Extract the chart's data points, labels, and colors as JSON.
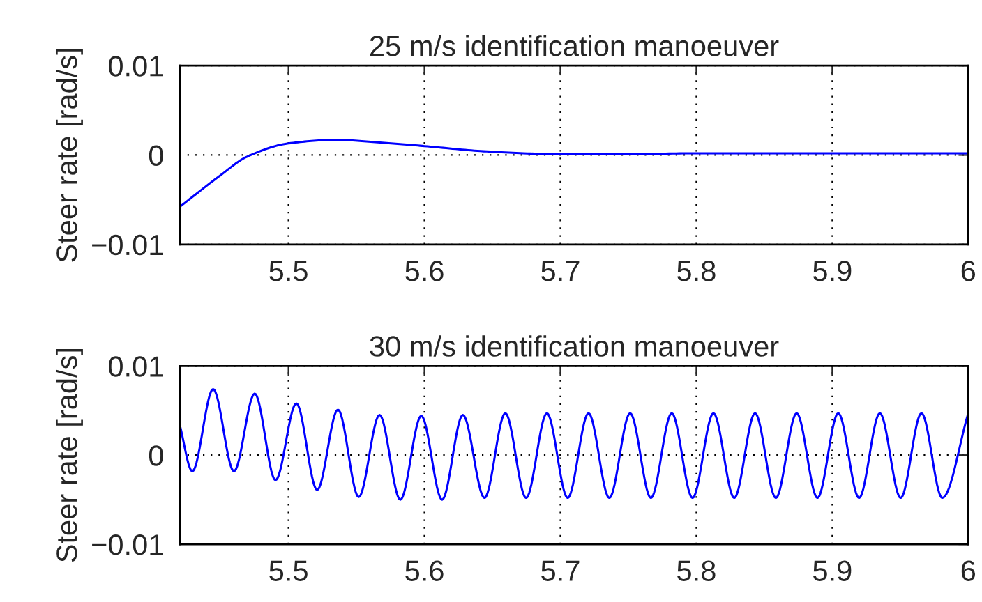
{
  "chart_data": [
    {
      "type": "line",
      "title": "25 m/s identification manoeuver",
      "ylabel": "Steer rate [rad/s]",
      "series": [
        {
          "color": "#0000ff",
          "x": [
            5.42,
            5.4497,
            5.4693,
            5.5,
            5.534,
            5.5673,
            5.6,
            5.6459,
            5.7,
            5.75,
            5.8,
            5.9,
            6.0
          ],
          "values": [
            -0.0058,
            -0.0023,
            -0.0002,
            0.0013,
            0.0017,
            0.0014,
            0.001,
            0.0004,
            0.0001,
            0.0001,
            0.0002,
            0.0002,
            0.0002
          ]
        }
      ],
      "xlim": [
        5.42,
        6
      ],
      "xticks": [
        5.5,
        5.6,
        5.7,
        5.8,
        5.9,
        6
      ],
      "ylim": [
        -0.01,
        0.01
      ],
      "yticks": [
        {
          "value": -0.01,
          "label": "−0.01"
        },
        0,
        0.01
      ],
      "grid": true,
      "line_style": "solid"
    },
    {
      "type": "line",
      "title": "30 m/s identification manoeuver",
      "ylabel": "Steer rate [rad/s]",
      "series": [
        {
          "color": "#0000ff",
          "x": [
            5.42,
            5.4293,
            5.4446,
            5.4599,
            5.4752,
            5.4905,
            5.5058,
            5.5211,
            5.5364,
            5.5517,
            5.567,
            5.5823,
            5.5977,
            5.613,
            5.6283,
            5.6442,
            5.6595,
            5.6748,
            5.6901,
            5.7054,
            5.7207,
            5.736,
            5.7513,
            5.7666,
            5.7819,
            5.7972,
            5.8126,
            5.8279,
            5.8432,
            5.8585,
            5.8738,
            5.8891,
            5.9044,
            5.9197,
            5.935,
            5.9503,
            5.9656,
            5.9809,
            6.0
          ],
          "values": [
            0.0034,
            -0.0018,
            0.0074,
            -0.0018,
            0.0069,
            -0.0028,
            0.0058,
            -0.0039,
            0.0051,
            -0.0047,
            0.0045,
            -0.005,
            0.0044,
            -0.005,
            0.0045,
            -0.0048,
            0.0047,
            -0.0048,
            0.0047,
            -0.0048,
            0.0047,
            -0.0048,
            0.0047,
            -0.0048,
            0.0047,
            -0.0048,
            0.0047,
            -0.0048,
            0.0047,
            -0.0048,
            0.0047,
            -0.0048,
            0.0047,
            -0.0048,
            0.0047,
            -0.0048,
            0.0047,
            -0.0048,
            0.0047
          ]
        }
      ],
      "xlim": [
        5.42,
        6
      ],
      "xticks": [
        5.5,
        5.6,
        5.7,
        5.8,
        5.9,
        6
      ],
      "ylim": [
        -0.01,
        0.01
      ],
      "yticks": [
        {
          "value": -0.01,
          "label": "−0.01"
        },
        0,
        0.01
      ],
      "grid": true,
      "line_style": "solid"
    }
  ]
}
